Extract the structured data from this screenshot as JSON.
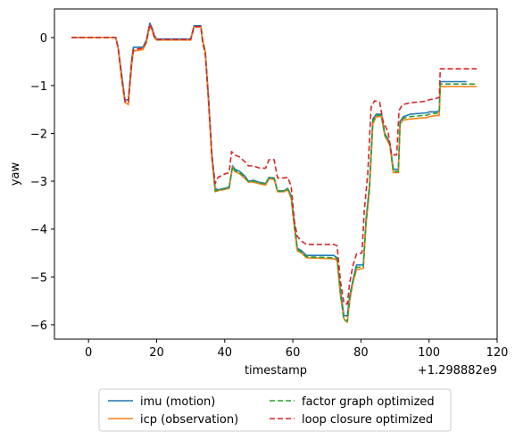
{
  "chart_data": {
    "type": "line",
    "xlabel": "timestamp",
    "ylabel": "yaw",
    "x_offset_label": "+1.298882e9",
    "xlim": [
      -10,
      120
    ],
    "ylim": [
      -6.3,
      0.6
    ],
    "xticks": [
      0,
      20,
      40,
      60,
      80,
      100,
      120
    ],
    "yticks": [
      0,
      -1,
      -2,
      -3,
      -4,
      -5,
      -6
    ],
    "legend_placement": "below",
    "grid": false,
    "series": [
      {
        "name": "imu (motion)",
        "color": "#1f77b4",
        "dash": "solid",
        "points": [
          [
            -5,
            0
          ],
          [
            8,
            0
          ],
          [
            8.7,
            -0.2
          ],
          [
            9.7,
            -0.75
          ],
          [
            10.7,
            -1.3
          ],
          [
            11.7,
            -1.3
          ],
          [
            12.7,
            -0.45
          ],
          [
            13.2,
            -0.2
          ],
          [
            16,
            -0.2
          ],
          [
            17,
            -0.05
          ],
          [
            18,
            0.3
          ],
          [
            18.7,
            0.2
          ],
          [
            19.3,
            0.05
          ],
          [
            20,
            -0.03
          ],
          [
            30,
            -0.03
          ],
          [
            31,
            0.25
          ],
          [
            33,
            0.25
          ],
          [
            33.5,
            -0.05
          ],
          [
            34.3,
            -0.3
          ],
          [
            35.2,
            -1.2
          ],
          [
            36.2,
            -2.4
          ],
          [
            37.2,
            -3.15
          ],
          [
            38,
            -3.18
          ],
          [
            40,
            -3.15
          ],
          [
            41.3,
            -3.12
          ],
          [
            42.3,
            -2.68
          ],
          [
            43,
            -2.75
          ],
          [
            44.5,
            -2.8
          ],
          [
            46,
            -2.9
          ],
          [
            47,
            -3
          ],
          [
            48.5,
            -2.98
          ],
          [
            50,
            -3.02
          ],
          [
            52,
            -3.05
          ],
          [
            53,
            -2.92
          ],
          [
            54.5,
            -2.93
          ],
          [
            55.5,
            -3.2
          ],
          [
            57.5,
            -3.2
          ],
          [
            58.5,
            -3.15
          ],
          [
            59.5,
            -3.3
          ],
          [
            60.5,
            -3.9
          ],
          [
            61.3,
            -4.4
          ],
          [
            62.5,
            -4.45
          ],
          [
            64,
            -4.55
          ],
          [
            72,
            -4.55
          ],
          [
            73,
            -4.6
          ],
          [
            74,
            -5.3
          ],
          [
            75,
            -5.8
          ],
          [
            76,
            -5.82
          ],
          [
            76.7,
            -5.4
          ],
          [
            77.7,
            -5.05
          ],
          [
            78.7,
            -4.75
          ],
          [
            80.7,
            -4.75
          ],
          [
            81.5,
            -3.8
          ],
          [
            82.5,
            -3.1
          ],
          [
            83.5,
            -1.7
          ],
          [
            84.5,
            -1.6
          ],
          [
            86,
            -1.6
          ],
          [
            87,
            -2
          ],
          [
            88.5,
            -2.2
          ],
          [
            89.5,
            -2.75
          ],
          [
            91,
            -2.75
          ],
          [
            91.5,
            -1.75
          ],
          [
            92.5,
            -1.65
          ],
          [
            94.5,
            -1.6
          ],
          [
            99.5,
            -1.57
          ],
          [
            100,
            -1.55
          ],
          [
            102,
            -1.55
          ],
          [
            103,
            -1.53
          ],
          [
            103.3,
            -0.92
          ],
          [
            111,
            -0.92
          ]
        ]
      },
      {
        "name": "icp (observation)",
        "color": "#ff7f0e",
        "dash": "solid",
        "points": [
          [
            -5,
            0
          ],
          [
            8,
            0
          ],
          [
            8.7,
            -0.22
          ],
          [
            9.7,
            -0.85
          ],
          [
            10.7,
            -1.35
          ],
          [
            11.7,
            -1.4
          ],
          [
            12.7,
            -0.55
          ],
          [
            13.2,
            -0.28
          ],
          [
            16,
            -0.25
          ],
          [
            17,
            -0.1
          ],
          [
            18,
            0.25
          ],
          [
            18.7,
            0.15
          ],
          [
            19.3,
            0
          ],
          [
            20,
            -0.05
          ],
          [
            30,
            -0.05
          ],
          [
            31,
            0.22
          ],
          [
            33,
            0.22
          ],
          [
            33.5,
            -0.05
          ],
          [
            34.3,
            -0.3
          ],
          [
            35.2,
            -1.3
          ],
          [
            36.2,
            -2.5
          ],
          [
            37.2,
            -3.22
          ],
          [
            38,
            -3.2
          ],
          [
            40,
            -3.17
          ],
          [
            41.3,
            -3.15
          ],
          [
            42.3,
            -2.7
          ],
          [
            43,
            -2.8
          ],
          [
            44.5,
            -2.85
          ],
          [
            46,
            -2.95
          ],
          [
            47,
            -3.02
          ],
          [
            48.5,
            -3.02
          ],
          [
            50,
            -3.05
          ],
          [
            52,
            -3.08
          ],
          [
            53,
            -2.95
          ],
          [
            54.5,
            -2.96
          ],
          [
            55.5,
            -3.22
          ],
          [
            57.5,
            -3.22
          ],
          [
            58.5,
            -3.18
          ],
          [
            59.5,
            -3.35
          ],
          [
            60.5,
            -4
          ],
          [
            61.3,
            -4.45
          ],
          [
            62.5,
            -4.5
          ],
          [
            64,
            -4.6
          ],
          [
            72,
            -4.62
          ],
          [
            73,
            -4.65
          ],
          [
            74,
            -5.4
          ],
          [
            75,
            -5.87
          ],
          [
            76,
            -5.95
          ],
          [
            76.7,
            -5.5
          ],
          [
            77.7,
            -5.1
          ],
          [
            78.7,
            -4.85
          ],
          [
            80.7,
            -4.82
          ],
          [
            81.5,
            -3.9
          ],
          [
            82.5,
            -3.2
          ],
          [
            83.5,
            -1.8
          ],
          [
            84.5,
            -1.65
          ],
          [
            86,
            -1.65
          ],
          [
            87,
            -2.05
          ],
          [
            88.5,
            -2.25
          ],
          [
            89.5,
            -2.82
          ],
          [
            91,
            -2.82
          ],
          [
            91.5,
            -1.8
          ],
          [
            92.5,
            -1.72
          ],
          [
            94.5,
            -1.7
          ],
          [
            99.5,
            -1.67
          ],
          [
            100,
            -1.65
          ],
          [
            102,
            -1.63
          ],
          [
            103,
            -1.62
          ],
          [
            103.3,
            -1.02
          ],
          [
            114,
            -1.02
          ]
        ]
      },
      {
        "name": "factor graph optimized",
        "color": "#2ca02c",
        "dash": "dashed",
        "points": [
          [
            -5,
            0
          ],
          [
            8,
            0
          ],
          [
            8.7,
            -0.21
          ],
          [
            9.7,
            -0.8
          ],
          [
            10.7,
            -1.33
          ],
          [
            11.7,
            -1.35
          ],
          [
            12.7,
            -0.5
          ],
          [
            13.2,
            -0.25
          ],
          [
            16,
            -0.22
          ],
          [
            17,
            -0.08
          ],
          [
            18,
            0.28
          ],
          [
            18.7,
            0.18
          ],
          [
            19.3,
            0.03
          ],
          [
            20,
            -0.04
          ],
          [
            30,
            -0.04
          ],
          [
            31,
            0.23
          ],
          [
            33,
            0.23
          ],
          [
            33.5,
            -0.05
          ],
          [
            34.3,
            -0.3
          ],
          [
            35.2,
            -1.25
          ],
          [
            36.2,
            -2.45
          ],
          [
            37.2,
            -3.2
          ],
          [
            38,
            -3.19
          ],
          [
            40,
            -3.16
          ],
          [
            41.3,
            -3.14
          ],
          [
            42.3,
            -2.69
          ],
          [
            43,
            -2.78
          ],
          [
            44.5,
            -2.83
          ],
          [
            46,
            -2.92
          ],
          [
            47,
            -3.01
          ],
          [
            48.5,
            -3
          ],
          [
            50,
            -3.03
          ],
          [
            52,
            -3.06
          ],
          [
            53,
            -2.93
          ],
          [
            54.5,
            -2.94
          ],
          [
            55.5,
            -3.21
          ],
          [
            57.5,
            -3.21
          ],
          [
            58.5,
            -3.16
          ],
          [
            59.5,
            -3.32
          ],
          [
            60.5,
            -3.95
          ],
          [
            61.3,
            -4.42
          ],
          [
            62.5,
            -4.48
          ],
          [
            64,
            -4.58
          ],
          [
            72,
            -4.6
          ],
          [
            73,
            -4.62
          ],
          [
            74,
            -5.35
          ],
          [
            75,
            -5.9
          ],
          [
            76,
            -5.92
          ],
          [
            76.7,
            -5.45
          ],
          [
            77.7,
            -5.08
          ],
          [
            78.7,
            -4.8
          ],
          [
            80.7,
            -4.79
          ],
          [
            81.5,
            -3.85
          ],
          [
            82.5,
            -3.15
          ],
          [
            83.5,
            -1.75
          ],
          [
            84.5,
            -1.63
          ],
          [
            86,
            -1.62
          ],
          [
            87,
            -2.02
          ],
          [
            88.5,
            -2.23
          ],
          [
            89.5,
            -2.79
          ],
          [
            91,
            -2.8
          ],
          [
            91.5,
            -1.78
          ],
          [
            92.5,
            -1.68
          ],
          [
            94.5,
            -1.65
          ],
          [
            99.5,
            -1.62
          ],
          [
            100,
            -1.6
          ],
          [
            102,
            -1.58
          ],
          [
            103,
            -1.57
          ],
          [
            103.3,
            -0.97
          ],
          [
            114,
            -0.97
          ]
        ]
      },
      {
        "name": "loop closure optimized",
        "color": "#d62728",
        "dash": "dashed",
        "points": [
          [
            -5,
            0
          ],
          [
            8,
            0
          ],
          [
            8.7,
            -0.21
          ],
          [
            9.7,
            -0.8
          ],
          [
            10.7,
            -1.33
          ],
          [
            11.7,
            -1.35
          ],
          [
            12.7,
            -0.5
          ],
          [
            13.2,
            -0.25
          ],
          [
            16,
            -0.22
          ],
          [
            17,
            -0.08
          ],
          [
            18,
            0.28
          ],
          [
            18.7,
            0.18
          ],
          [
            19.3,
            0.03
          ],
          [
            20,
            -0.04
          ],
          [
            30,
            -0.04
          ],
          [
            31,
            0.23
          ],
          [
            33,
            0.23
          ],
          [
            33.5,
            -0.1
          ],
          [
            34.3,
            -0.35
          ],
          [
            35.2,
            -1.25
          ],
          [
            36.2,
            -2.45
          ],
          [
            37.2,
            -3.05
          ],
          [
            38,
            -2.92
          ],
          [
            40,
            -2.85
          ],
          [
            41.3,
            -2.82
          ],
          [
            42,
            -2.38
          ],
          [
            43,
            -2.45
          ],
          [
            44.5,
            -2.5
          ],
          [
            46,
            -2.6
          ],
          [
            47,
            -2.68
          ],
          [
            48.5,
            -2.68
          ],
          [
            50,
            -2.72
          ],
          [
            52,
            -2.73
          ],
          [
            53,
            -2.55
          ],
          [
            54.5,
            -2.55
          ],
          [
            55.5,
            -2.93
          ],
          [
            57.5,
            -2.93
          ],
          [
            58.5,
            -2.92
          ],
          [
            59.5,
            -3.1
          ],
          [
            60.5,
            -3.85
          ],
          [
            61.3,
            -4.15
          ],
          [
            62.5,
            -4.25
          ],
          [
            64,
            -4.32
          ],
          [
            72,
            -4.32
          ],
          [
            73,
            -4.35
          ],
          [
            74,
            -5.1
          ],
          [
            75,
            -5.55
          ],
          [
            76,
            -5.57
          ],
          [
            76.7,
            -5.12
          ],
          [
            77.7,
            -4.75
          ],
          [
            78.7,
            -4.52
          ],
          [
            80.3,
            -4.5
          ],
          [
            81,
            -3.6
          ],
          [
            82,
            -2.85
          ],
          [
            83,
            -1.45
          ],
          [
            84,
            -1.32
          ],
          [
            85.5,
            -1.35
          ],
          [
            86.5,
            -1.75
          ],
          [
            88,
            -1.98
          ],
          [
            89,
            -2.45
          ],
          [
            90.5,
            -2.45
          ],
          [
            91.2,
            -1.52
          ],
          [
            92.2,
            -1.4
          ],
          [
            94.5,
            -1.36
          ],
          [
            99,
            -1.33
          ],
          [
            100,
            -1.3
          ],
          [
            102,
            -1.27
          ],
          [
            103,
            -1.25
          ],
          [
            103.3,
            -0.65
          ],
          [
            114,
            -0.65
          ]
        ]
      }
    ]
  }
}
